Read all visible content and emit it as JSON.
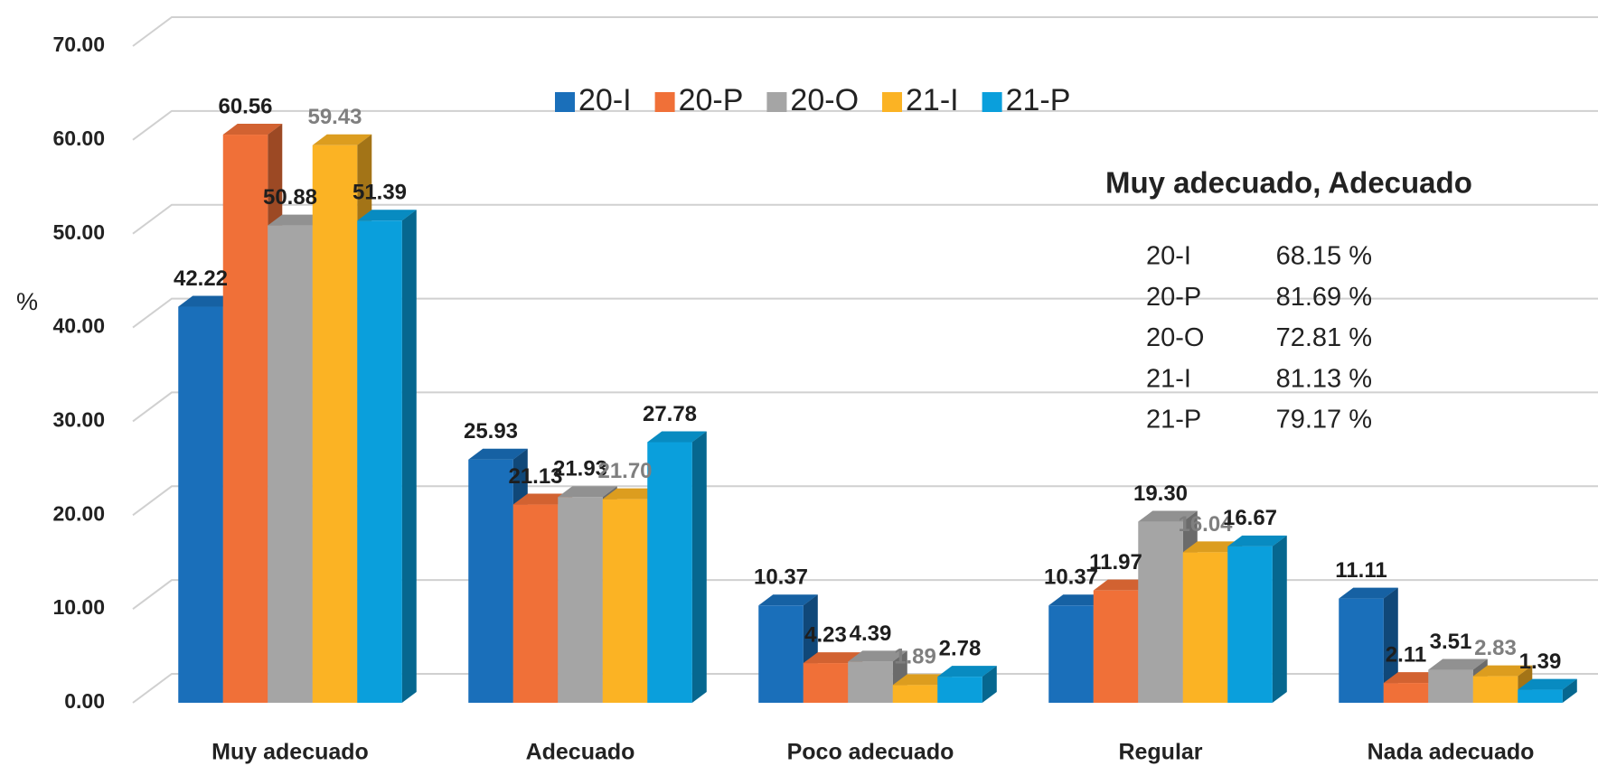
{
  "chart_data": {
    "type": "bar3d",
    "y_label": "%",
    "categories": [
      "Muy adecuado",
      "Adecuado",
      "Poco adecuado",
      "Regular",
      "Nada adecuado"
    ],
    "series": [
      {
        "name": "20-I",
        "color": "#1a6fba",
        "label_color": "#1e1e1e",
        "values": [
          42.22,
          25.93,
          10.37,
          10.37,
          11.11
        ],
        "value_labels": [
          "42.22",
          "25.93",
          "10.37",
          "10.37",
          "11.11"
        ]
      },
      {
        "name": "20-P",
        "color": "#f07038",
        "label_color": "#1e1e1e",
        "values": [
          60.56,
          21.13,
          4.23,
          11.97,
          2.11
        ],
        "value_labels": [
          "60.56",
          "21.13",
          "4.23",
          "11.97",
          "2.11"
        ]
      },
      {
        "name": "20-O",
        "color": "#a5a5a5",
        "label_color": "#1e1e1e",
        "values": [
          50.88,
          21.93,
          4.39,
          19.3,
          3.51
        ],
        "value_labels": [
          "50.88",
          "21.93",
          "4.39",
          "19.30",
          "3.51"
        ]
      },
      {
        "name": "21-I",
        "color": "#fbb324",
        "label_color": "#7f7f7f",
        "values": [
          59.43,
          21.7,
          1.89,
          16.04,
          2.83
        ],
        "value_labels": [
          "59.43",
          "21.70",
          "1.89",
          "16.04",
          "2.83"
        ]
      },
      {
        "name": "21-P",
        "color": "#0a9fdc",
        "label_color": "#1e1e1e",
        "values": [
          51.39,
          27.78,
          2.78,
          16.67,
          1.39
        ],
        "value_labels": [
          "51.39",
          "27.78",
          "2.78",
          "16.67",
          "1.39"
        ]
      }
    ],
    "ylim": [
      0,
      70
    ],
    "yticks": [
      {
        "value": 0,
        "label": "0.00"
      },
      {
        "value": 10,
        "label": "10.00"
      },
      {
        "value": 20,
        "label": "20.00"
      },
      {
        "value": 30,
        "label": "30.00"
      },
      {
        "value": 40,
        "label": "40.00"
      },
      {
        "value": 50,
        "label": "50.00"
      },
      {
        "value": 60,
        "label": "60.00"
      },
      {
        "value": 70,
        "label": "70.00"
      }
    ],
    "grid": true,
    "legend": "top",
    "annotation": {
      "title": "Muy adecuado, Adecuado",
      "items": [
        {
          "label": "20-I",
          "value": "68.15 %"
        },
        {
          "label": "20-P",
          "value": "81.69 %"
        },
        {
          "label": "20-O",
          "value": "72.81 %"
        },
        {
          "label": "21-I",
          "value": "81.13 %"
        },
        {
          "label": "21-P",
          "value": "79.17 %"
        }
      ]
    }
  }
}
